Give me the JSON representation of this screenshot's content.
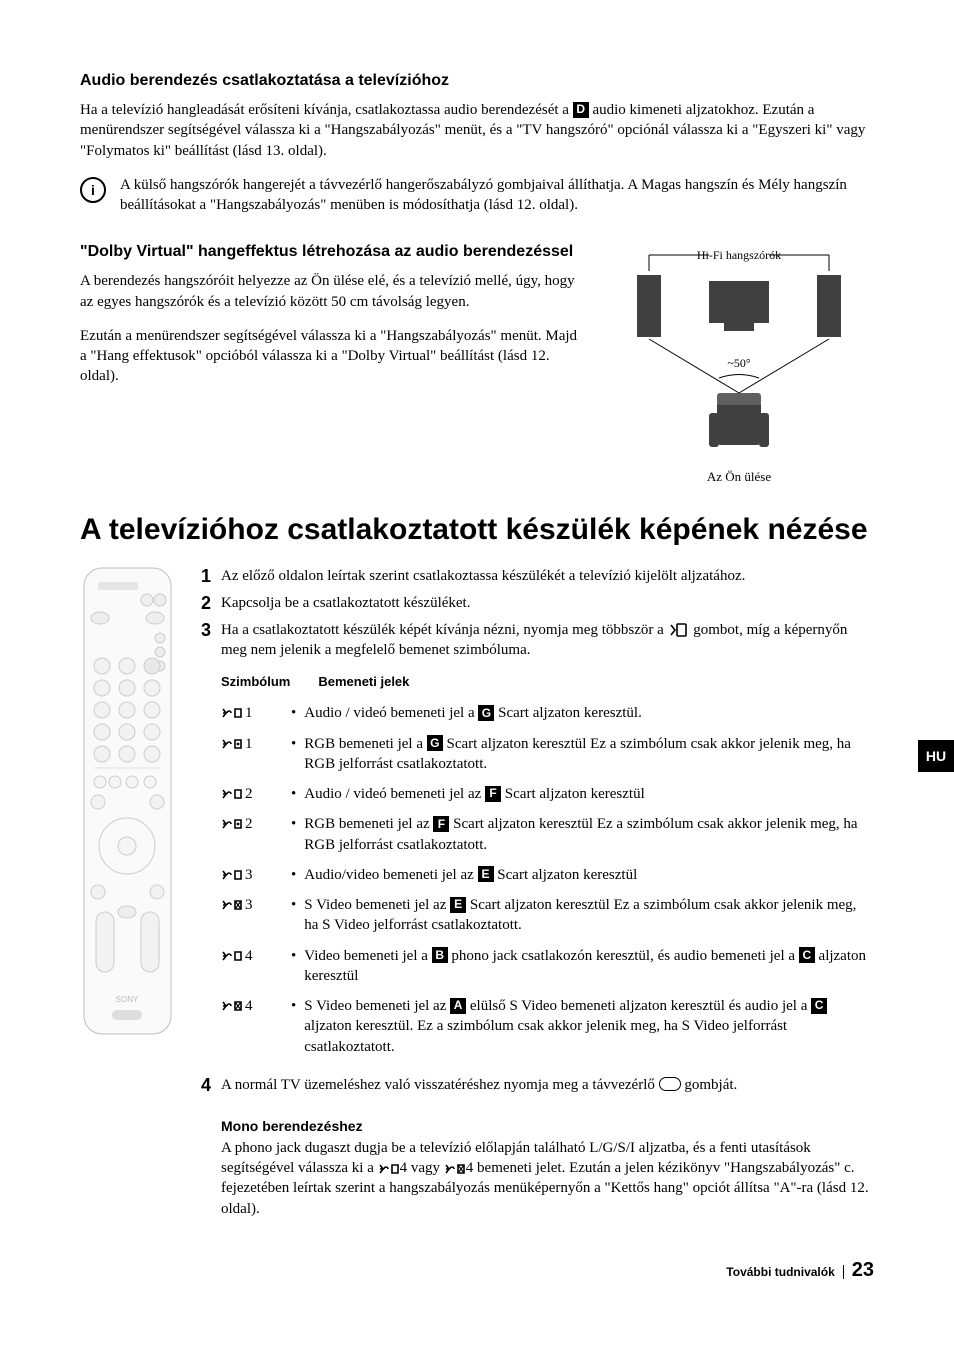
{
  "section1": {
    "heading": "Audio berendezés csatlakoztatása a televízióhoz",
    "p1_a": "Ha a televízió hangleadását erősíteni kívánja, csatlakoztassa audio berendezését a ",
    "p1_letter": "D",
    "p1_b": " audio kimeneti aljzatokhoz. Ezután a menürendszer segítségével válassza ki a \"Hangszabályozás\" menüt, és a \"TV hangszóró\" opciónál válassza ki a \"Egyszeri ki\" vagy \"Folymatos ki\" beállítást (lásd 13. oldal).",
    "info": "A külső hangszórók hangerejét a távvezérlő hangerőszabályzó gombjaival állíthatja. A Magas hangszín és Mély hangszín beállításokat a \"Hangszabályozás\" menüben is módosíthatja (lásd 12. oldal)."
  },
  "section2": {
    "heading": "\"Dolby Virtual\" hangeffektus létrehozása az audio berendezéssel",
    "p1": "A berendezés hangszóróit helyezze az Ön ülése elé, és a televízió mellé, úgy, hogy az egyes hangszórók és a televízió között 50 cm távolság legyen.",
    "p2": "Ezután a menürendszer segítségével válassza ki a \"Hangszabályozás\" menüt. Majd a \"Hang effektusok\" opcióból válassza ki a \"Dolby Virtual\" beállítást (lásd 12. oldal).",
    "diagram_label_top": "Hi-Fi hangszórók",
    "diagram_angle": "~50°",
    "diagram_caption": "Az Ön ülése"
  },
  "main": {
    "heading": "A televízióhoz csatlakoztatott készülék képének nézése",
    "step1": "Az előző oldalon leírtak szerint csatlakoztassa készülékét a televízió kijelölt aljzatához.",
    "step2": "Kapcsolja be a csatlakoztatott készüléket.",
    "step3": "Ha a csatlakoztatott készülék képét kívánja nézni, nyomja meg többször a      gombot, míg a képernyőn meg nem jelenik a megfelelő bemenet szimbóluma.",
    "col_sym": "Szimbólum",
    "col_sig": "Bemeneti jelek",
    "rows": [
      {
        "icon": "av",
        "num": "1",
        "pre": "Audio / videó bemeneti jel a ",
        "letter": "G",
        "post": " Scart aljzaton keresztül."
      },
      {
        "icon": "rgb",
        "num": "1",
        "pre": "RGB bemeneti jel a ",
        "letter": "G",
        "post": " Scart aljzaton keresztül Ez a szimbólum csak akkor jelenik meg, ha RGB jelforrást csatlakoztatott."
      },
      {
        "icon": "av",
        "num": "2",
        "pre": "Audio / videó bemeneti jel az ",
        "letter": "F",
        "post": " Scart aljzaton keresztül"
      },
      {
        "icon": "rgb",
        "num": "2",
        "pre": "RGB bemeneti jel az ",
        "letter": "F",
        "post": " Scart aljzaton keresztül Ez a szimbólum csak akkor jelenik meg, ha RGB jelforrást csatlakoztatott."
      },
      {
        "icon": "av",
        "num": "3",
        "pre": "Audio/video bemeneti jel az ",
        "letter": "E",
        "post": " Scart aljzaton keresztül"
      },
      {
        "icon": "sv",
        "num": "3",
        "pre": "S Video bemeneti jel az ",
        "letter": "E",
        "post": " Scart aljzaton keresztül Ez a szimbólum csak akkor jelenik meg, ha S Video jelforrást csatlakoztatott."
      }
    ],
    "row4a": {
      "icon": "av",
      "num": "4",
      "pre": "Video bemeneti jel a ",
      "letter1": "B",
      "mid": " phono jack csatlakozón keresztül, és audio bemeneti jel a ",
      "letter2": "C",
      "post": " aljzaton keresztül"
    },
    "row4b": {
      "icon": "sv",
      "num": "4",
      "pre": "S Video bemeneti jel az ",
      "letter1": "A",
      "mid": " elülső S Video bemeneti aljzaton keresztül és audio jel a ",
      "letter2": "C",
      "post": " aljzaton keresztül. Ez a szimbólum csak akkor jelenik meg, ha S Video jelforrást csatlakoztatott."
    },
    "step4": "A normál TV üzemeléshez való visszatéréshez nyomja meg a távvezérlő        gombját.",
    "mono_h": "Mono berendezéshez",
    "mono_p": "A phono jack dugaszt dugja be a televízió előlapján található L/G/S/I aljzatba, és a fenti utasítások segítségével válassza ki a      4 vagy      4 bemeneti jelet. Ezután a jelen kézikönyv \"Hangszabályozás\" c. fejezetében leírtak szerint a hangszabályozás menüképernyőn a \"Kettős hang\" opciót állítsa \"A\"-ra (lásd 12. oldal)."
  },
  "side_tab": "HU",
  "footer": {
    "section": "További tudnivalók",
    "page": "23"
  },
  "colors": {
    "text": "#000000",
    "bg": "#ffffff",
    "box": "#000000",
    "box_text": "#ffffff"
  }
}
